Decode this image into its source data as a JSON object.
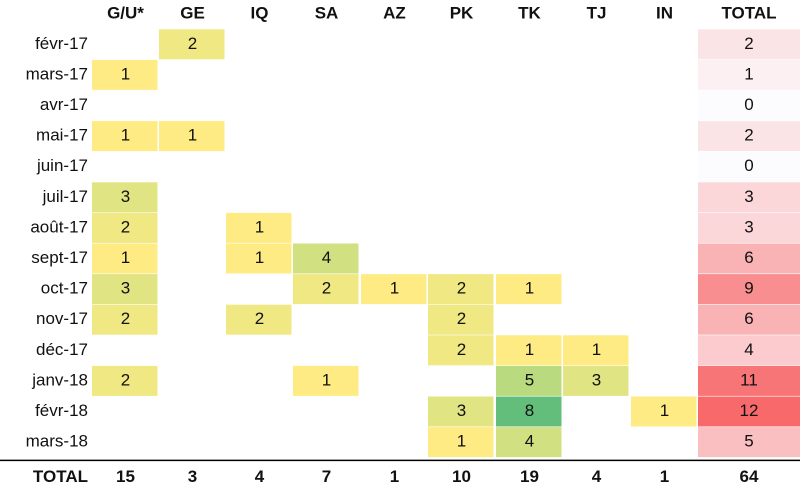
{
  "chart_data": {
    "type": "heatmap",
    "columns": [
      "G/U*",
      "GE",
      "IQ",
      "SA",
      "AZ",
      "PK",
      "TK",
      "TJ",
      "IN"
    ],
    "total_label": "TOTAL",
    "rows": [
      "févr-17",
      "mars-17",
      "avr-17",
      "mai-17",
      "juin-17",
      "juil-17",
      "août-17",
      "sept-17",
      "oct-17",
      "nov-17",
      "déc-17",
      "janv-18",
      "févr-18",
      "mars-18"
    ],
    "values": [
      [
        null,
        2,
        null,
        null,
        null,
        null,
        null,
        null,
        null
      ],
      [
        1,
        null,
        null,
        null,
        null,
        null,
        null,
        null,
        null
      ],
      [
        null,
        null,
        null,
        null,
        null,
        null,
        null,
        null,
        null
      ],
      [
        1,
        1,
        null,
        null,
        null,
        null,
        null,
        null,
        null
      ],
      [
        null,
        null,
        null,
        null,
        null,
        null,
        null,
        null,
        null
      ],
      [
        3,
        null,
        null,
        null,
        null,
        null,
        null,
        null,
        null
      ],
      [
        2,
        null,
        1,
        null,
        null,
        null,
        null,
        null,
        null
      ],
      [
        1,
        null,
        1,
        4,
        null,
        null,
        null,
        null,
        null
      ],
      [
        3,
        null,
        null,
        2,
        1,
        2,
        1,
        null,
        null
      ],
      [
        2,
        null,
        2,
        null,
        null,
        2,
        null,
        null,
        null
      ],
      [
        null,
        null,
        null,
        null,
        null,
        2,
        1,
        1,
        null
      ],
      [
        2,
        null,
        null,
        1,
        null,
        null,
        5,
        3,
        null
      ],
      [
        null,
        null,
        null,
        null,
        null,
        3,
        8,
        null,
        1
      ],
      [
        null,
        null,
        null,
        null,
        null,
        1,
        4,
        null,
        null
      ]
    ],
    "row_totals": [
      2,
      1,
      0,
      2,
      0,
      3,
      3,
      6,
      9,
      6,
      4,
      11,
      12,
      5
    ],
    "column_totals": [
      15,
      3,
      4,
      7,
      1,
      10,
      19,
      4,
      1
    ],
    "grand_total": 64,
    "colors": {
      "scale_low": "#ffeb84",
      "scale_mid": "#c9df80",
      "scale_high": "#63be7b",
      "total_low": "#fcfcff",
      "total_high": "#f8696b",
      "rule": "#000000"
    }
  }
}
